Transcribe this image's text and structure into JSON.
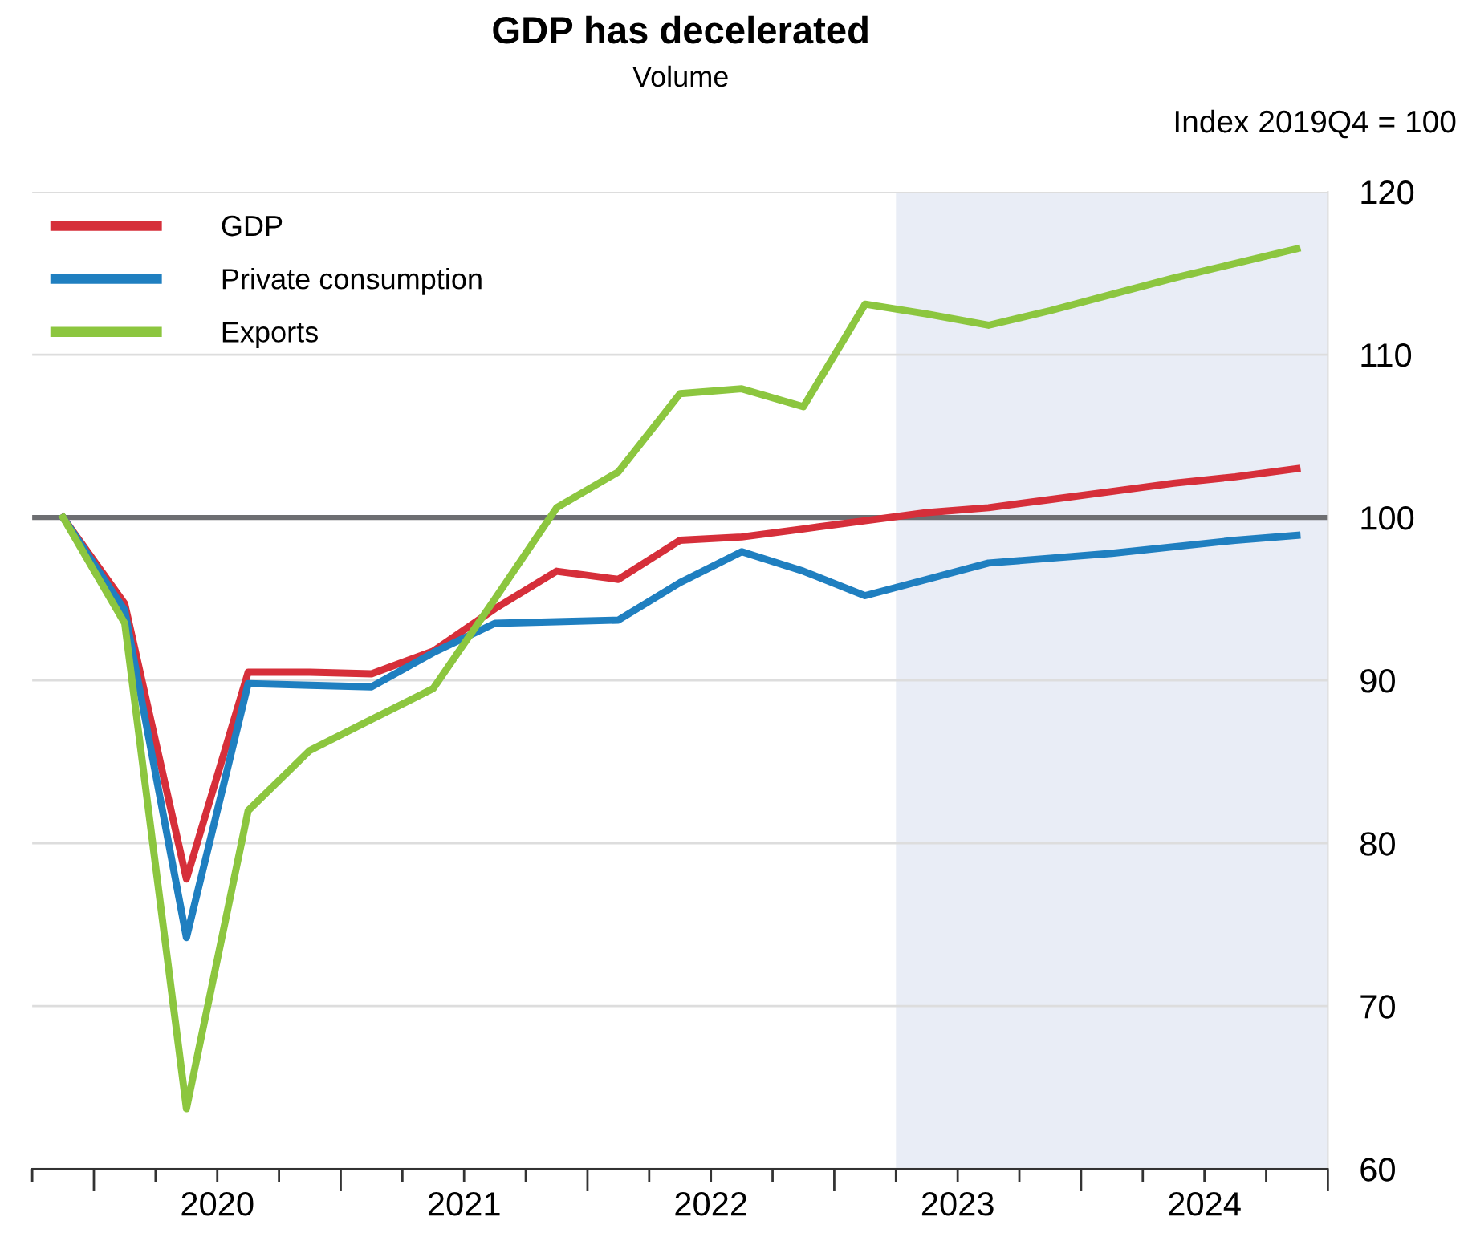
{
  "chart_data": {
    "type": "line",
    "title": "GDP has decelerated",
    "subtitle": "Volume",
    "ylabel": "Index 2019Q4 = 100",
    "x": [
      2019.875,
      2020.125,
      2020.375,
      2020.625,
      2020.875,
      2021.125,
      2021.375,
      2021.625,
      2021.875,
      2022.125,
      2022.375,
      2022.625,
      2022.875,
      2023.125,
      2023.375,
      2023.625,
      2023.875,
      2024.125,
      2024.375,
      2024.625,
      2024.875
    ],
    "series": [
      {
        "name": "GDP",
        "color": "#d62f3a",
        "values": [
          100,
          94.7,
          77.8,
          90.5,
          90.5,
          90.4,
          91.8,
          94.4,
          96.7,
          96.2,
          98.6,
          98.8,
          99.3,
          99.8,
          100.3,
          100.6,
          101.1,
          101.6,
          102.1,
          102.5,
          103.0
        ]
      },
      {
        "name": "Private consumption",
        "color": "#1f7fc0",
        "values": [
          100,
          94.3,
          74.2,
          89.8,
          89.7,
          89.6,
          91.7,
          93.5,
          93.6,
          93.7,
          96.0,
          97.9,
          96.7,
          95.2,
          96.2,
          97.2,
          97.5,
          97.8,
          98.2,
          98.6,
          98.9
        ]
      },
      {
        "name": "Exports",
        "color": "#8cc63f",
        "values": [
          100,
          93.5,
          63.7,
          82.0,
          85.7,
          87.6,
          89.5,
          95.0,
          100.6,
          102.8,
          107.6,
          107.9,
          106.8,
          113.1,
          112.5,
          111.8,
          112.7,
          113.7,
          114.7,
          115.6,
          116.5
        ]
      }
    ],
    "xlim": [
      2019.75,
      2025
    ],
    "xticks": [
      {
        "value": 2019.75,
        "label": null
      },
      {
        "value": 2020,
        "label": null
      },
      {
        "value": 2020.25,
        "label": null
      },
      {
        "value": 2020.5,
        "label": "2020"
      },
      {
        "value": 2020.75,
        "label": null
      },
      {
        "value": 2021,
        "label": null
      },
      {
        "value": 2021.25,
        "label": null
      },
      {
        "value": 2021.5,
        "label": "2021"
      },
      {
        "value": 2021.75,
        "label": null
      },
      {
        "value": 2022,
        "label": null
      },
      {
        "value": 2022.25,
        "label": null
      },
      {
        "value": 2022.5,
        "label": "2022"
      },
      {
        "value": 2022.75,
        "label": null
      },
      {
        "value": 2023,
        "label": null
      },
      {
        "value": 2023.25,
        "label": null
      },
      {
        "value": 2023.5,
        "label": "2023"
      },
      {
        "value": 2023.75,
        "label": null
      },
      {
        "value": 2024,
        "label": null
      },
      {
        "value": 2024.25,
        "label": null
      },
      {
        "value": 2024.5,
        "label": "2024"
      },
      {
        "value": 2024.75,
        "label": null
      },
      {
        "value": 2025,
        "label": null
      }
    ],
    "ylim": [
      60,
      120
    ],
    "yticks": [
      60,
      70,
      80,
      90,
      100,
      110,
      120
    ],
    "ref_lines": [
      {
        "axis": "y",
        "value": 100,
        "color": "#6d6e71"
      }
    ],
    "bands": [
      {
        "axis": "x",
        "from": 2023.25,
        "to": 2025,
        "color": "#e9edf6"
      }
    ],
    "grid": "y",
    "legend": "top left",
    "marker": "none",
    "line_style": "solid"
  }
}
